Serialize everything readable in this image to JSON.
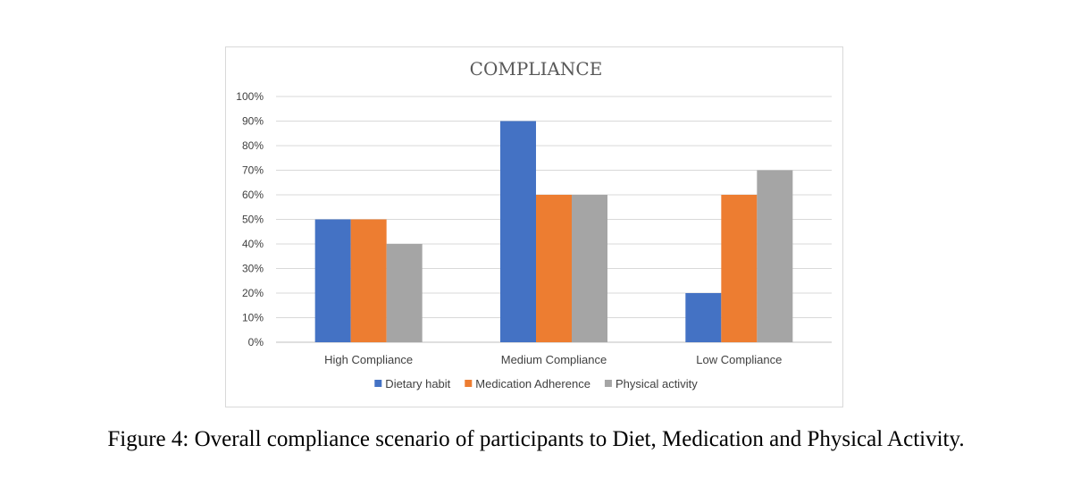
{
  "chart_data": {
    "type": "bar",
    "title": "COMPLIANCE",
    "categories": [
      "High Compliance",
      "Medium Compliance",
      "Low Compliance"
    ],
    "series": [
      {
        "name": "Dietary habit",
        "color": "#4472c4",
        "values": [
          50,
          90,
          20
        ]
      },
      {
        "name": "Medication Adherence",
        "color": "#ed7d31",
        "values": [
          50,
          60,
          60
        ]
      },
      {
        "name": "Physical activity",
        "color": "#a5a5a5",
        "values": [
          40,
          60,
          70
        ]
      }
    ],
    "ylim": [
      0,
      100
    ],
    "yticks": [
      "0%",
      "10%",
      "20%",
      "30%",
      "40%",
      "50%",
      "60%",
      "70%",
      "80%",
      "90%",
      "100%"
    ],
    "xlabel": "",
    "ylabel": "",
    "grid": true,
    "legend_position": "bottom"
  },
  "caption": "Figure 4: Overall compliance scenario of participants to Diet, Medication and Physical Activity."
}
